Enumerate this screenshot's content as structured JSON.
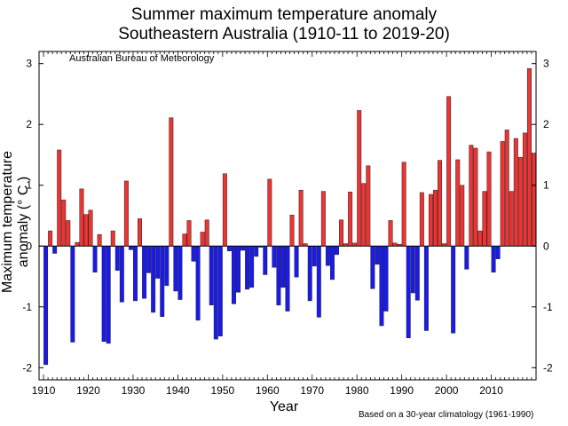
{
  "chart_data": {
    "type": "bar",
    "title": "Summer maximum temperature anomaly",
    "subtitle": "Southeastern Australia (1910-11 to 2019-20)",
    "xlabel": "Year",
    "ylabel": "Maximum temperature anomaly (° C )",
    "source_note": "Australian Bureau of Meteorology",
    "footnote": "Based on a 30-year climatology (1961-1990)",
    "xlim": [
      1909,
      2020
    ],
    "ylim": [
      -2.2,
      3.2
    ],
    "x_ticks": [
      1910,
      1920,
      1930,
      1940,
      1950,
      1960,
      1970,
      1980,
      1990,
      2000,
      2010
    ],
    "y_ticks": [
      -2,
      -1,
      0,
      1,
      2,
      3
    ],
    "colors": {
      "positive": "#ee3333",
      "negative": "#1a1aee",
      "edge": "#222222"
    },
    "grid": false,
    "x": [
      1910,
      1911,
      1912,
      1913,
      1914,
      1915,
      1916,
      1917,
      1918,
      1919,
      1920,
      1921,
      1922,
      1923,
      1924,
      1925,
      1926,
      1927,
      1928,
      1929,
      1930,
      1931,
      1932,
      1933,
      1934,
      1935,
      1936,
      1937,
      1938,
      1939,
      1940,
      1941,
      1942,
      1943,
      1944,
      1945,
      1946,
      1947,
      1948,
      1949,
      1950,
      1951,
      1952,
      1953,
      1954,
      1955,
      1956,
      1957,
      1958,
      1959,
      1960,
      1961,
      1962,
      1963,
      1964,
      1965,
      1966,
      1967,
      1968,
      1969,
      1970,
      1971,
      1972,
      1973,
      1974,
      1975,
      1976,
      1977,
      1978,
      1979,
      1980,
      1981,
      1982,
      1983,
      1984,
      1985,
      1986,
      1987,
      1988,
      1989,
      1990,
      1991,
      1992,
      1993,
      1994,
      1995,
      1996,
      1997,
      1998,
      1999,
      2000,
      2001,
      2002,
      2003,
      2004,
      2005,
      2006,
      2007,
      2008,
      2009,
      2010,
      2011,
      2012,
      2013,
      2014,
      2015,
      2016,
      2017,
      2018,
      2019
    ],
    "values": [
      -1.95,
      0.25,
      -0.12,
      1.58,
      0.76,
      0.42,
      -1.58,
      0.06,
      0.94,
      0.52,
      0.59,
      -0.43,
      0.19,
      -1.57,
      -1.6,
      0.25,
      -0.4,
      -0.92,
      1.07,
      -0.06,
      -0.9,
      0.45,
      -0.86,
      -0.44,
      -1.09,
      -0.53,
      -1.16,
      -0.65,
      2.11,
      -0.74,
      -0.88,
      0.2,
      0.42,
      -0.25,
      -1.22,
      0.23,
      0.43,
      -0.97,
      -1.53,
      -1.48,
      1.19,
      -0.08,
      -0.95,
      -0.76,
      -0.07,
      -0.71,
      -0.68,
      -0.17,
      -0.02,
      -0.47,
      1.1,
      -0.35,
      -0.97,
      -0.68,
      -1.07,
      0.51,
      -0.51,
      0.92,
      0.04,
      -0.9,
      -0.33,
      -1.17,
      0.9,
      -0.32,
      -0.55,
      -0.14,
      0.43,
      0.04,
      0.89,
      0.05,
      2.23,
      1.03,
      1.32,
      -0.7,
      -0.3,
      -1.31,
      -1.07,
      0.42,
      0.05,
      0.03,
      1.38,
      -1.51,
      -0.77,
      -0.89,
      0.88,
      -1.39,
      0.85,
      0.92,
      1.41,
      0.04,
      2.46,
      -1.43,
      1.42,
      1.0,
      -0.38,
      1.66,
      1.61,
      0.25,
      0.9,
      1.55,
      -0.43,
      -0.21,
      1.72,
      1.91,
      0.9,
      1.77,
      1.46,
      1.86,
      2.92,
      1.53
    ]
  }
}
